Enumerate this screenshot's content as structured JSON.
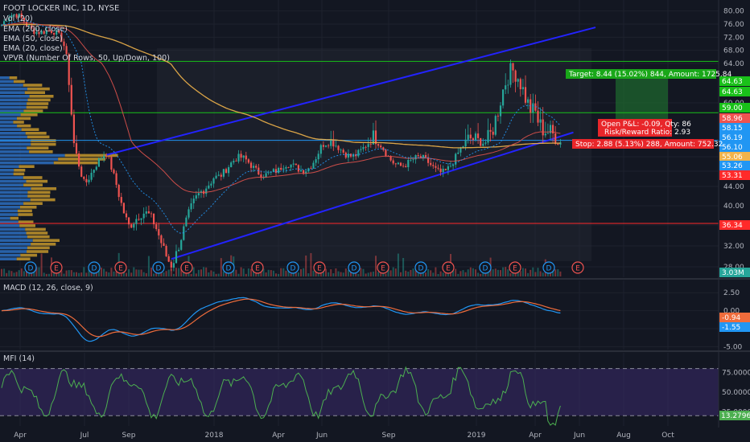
{
  "header": {
    "title": "FOOT LOCKER INC, 1D, NYSE",
    "indicators": [
      "Vol (20)",
      "EMA (200, close)",
      "EMA (50, close)",
      "EMA (20, close)",
      "VPVR (Number Of Rows, 50, Up/Down, 100)"
    ]
  },
  "colors": {
    "background": "#131722",
    "up": "#26a69a",
    "down": "#ef5350",
    "channel": "#2323ff",
    "ema200": "#f0b34a",
    "ema50": "#e0524d",
    "ema20": "#2196f3",
    "target_line": "#19c119",
    "stop_line": "#ff2a2a",
    "entry_line": "#2196f3"
  },
  "chart_data": [
    {
      "type": "line",
      "name": "main",
      "y_ticks": [
        28.0,
        32.0,
        36.0,
        40.0,
        44.0,
        48.0,
        52.0,
        56.0,
        60.0,
        64.0,
        68.0,
        72.0,
        76.0,
        80.0
      ],
      "ylim": [
        26.5,
        81.5
      ],
      "x_labels": [
        "Apr",
        "Jul",
        "Sep",
        "2018",
        "Apr",
        "Jun",
        "Sep",
        "2019",
        "Apr",
        "Jun",
        "Aug",
        "Oct"
      ],
      "price_labels": [
        {
          "text": "64.63",
          "color": "#19c119"
        },
        {
          "text": "64.63",
          "color": "#19c119"
        },
        {
          "text": "59.00",
          "color": "#19c119"
        },
        {
          "text": "58.96",
          "color": "#ef5350"
        },
        {
          "text": "58.15",
          "color": "#2196f3"
        },
        {
          "text": "56.19",
          "color": "#2196f3"
        },
        {
          "text": "56.10",
          "color": "#2196f3"
        },
        {
          "text": "55.06",
          "color": "#f0b34a"
        },
        {
          "text": "53.26",
          "color": "#2196f3"
        },
        {
          "text": "53.31",
          "color": "#ff2a2a"
        },
        {
          "text": "36.34",
          "color": "#ff2a2a"
        }
      ],
      "horizontal_levels": [
        {
          "value": 64.63,
          "color": "#19c119",
          "style": "solid"
        },
        {
          "value": 59.0,
          "color": "#19c119",
          "style": "solid"
        },
        {
          "value": 56.19,
          "color": "#2196f3",
          "style": "solid"
        },
        {
          "value": 36.34,
          "color": "#ff2a2a",
          "style": "solid"
        }
      ],
      "channel": {
        "lower": [
          {
            "date": "Nov 2017",
            "value": 29.5
          },
          {
            "date": "May 2019",
            "value": 57.0
          }
        ],
        "upper": [
          {
            "date": "Aug 2017",
            "value": 52.5
          },
          {
            "date": "Jun 2019",
            "value": 75.0
          }
        ]
      },
      "position": {
        "target_text": "Target: 8.44 (15.02%) 844, Amount: 1725.84",
        "open_text": "Open P&L: -0.09, Qty: 86",
        "ratio_text": "Risk/Reward Ratio: 2.93",
        "stop_text": "Stop: 2.88 (5.13%) 288, Amount: 752.32"
      },
      "series": [
        {
          "name": "FOOT LOCKER INC",
          "x_dates": [
            "Apr 2017",
            "Jun 2017",
            "Jul 2017",
            "Aug 2017",
            "Sep 2017",
            "Nov 2017",
            "Jan 2018",
            "Apr 2018",
            "Jun 2018",
            "Sep 2018",
            "Jan 2019",
            "Apr 2019",
            "May 2019"
          ],
          "values": [
            75.0,
            70.0,
            49.0,
            52.5,
            36.0,
            30.0,
            51.0,
            45.0,
            57.0,
            50.0,
            54.0,
            63.0,
            56.5
          ]
        }
      ],
      "ema200_end": 55.06,
      "volume_label": "3.03M",
      "event_markers": [
        "D",
        "E",
        "D",
        "E",
        "D",
        "E",
        "D",
        "E",
        "D",
        "E",
        "D",
        "E",
        "D",
        "E",
        "D",
        "E",
        "D",
        "E",
        "D",
        "E"
      ]
    },
    {
      "type": "line",
      "name": "MACD (12, 26, close, 9)",
      "y_ticks": [
        2.5,
        0.0,
        -2.5,
        -5.0
      ],
      "y_tick_labels": [
        "2.50",
        "0.00",
        "-2.50",
        "-5.00"
      ],
      "ylim": [
        -5.4,
        4.2
      ],
      "value_labels": [
        {
          "text": "-0.94",
          "color": "#ef6c3b"
        },
        {
          "text": "-1.55",
          "color": "#2196f3"
        }
      ]
    },
    {
      "type": "line",
      "name": "MFI (14)",
      "y_ticks": [
        75.0,
        50.0,
        25.0
      ],
      "y_tick_labels": [
        "75.0000",
        "50.0000",
        "25.0000"
      ],
      "ylim": [
        7,
        100
      ],
      "bands": [
        80,
        20
      ],
      "value_label": "13.2796"
    }
  ]
}
